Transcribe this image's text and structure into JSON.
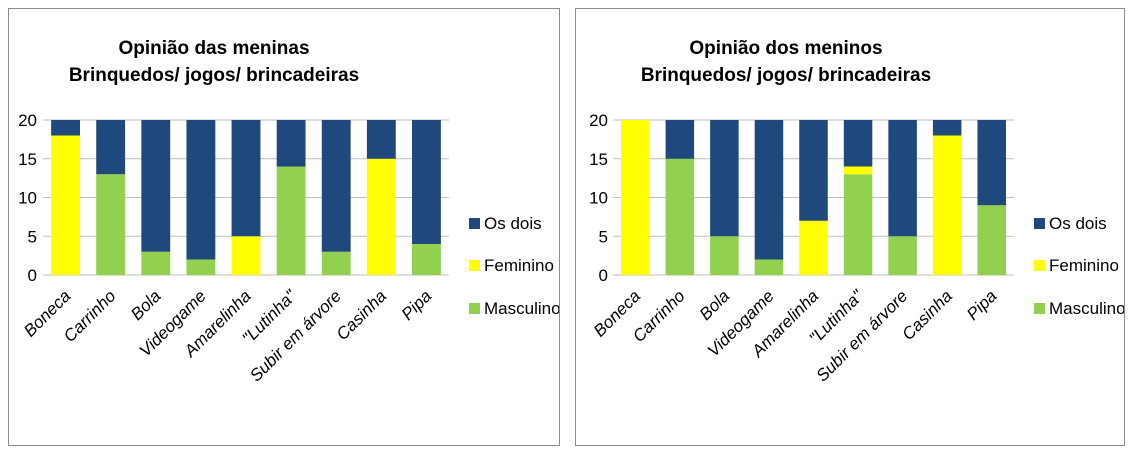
{
  "chart_data": [
    {
      "type": "bar",
      "stacked": true,
      "title": "Opinião das meninas",
      "subtitle": "Brinquedos/ jogos/ brincadeiras",
      "categories": [
        "Boneca",
        "Carrinho",
        "Bola",
        "Videogame",
        "Amarelinha",
        "\"Lutinha\"",
        "Subir em árvore",
        "Casinha",
        "Pipa"
      ],
      "yticks": [
        "0",
        "5",
        "10",
        "15",
        "20"
      ],
      "ylim": [
        0,
        20
      ],
      "legend_position": "right",
      "series": [
        {
          "name": "Masculino",
          "color": "#92d050",
          "values": [
            0,
            13,
            3,
            2,
            0,
            14,
            3,
            0,
            4
          ]
        },
        {
          "name": "Feminino",
          "color": "#ffff00",
          "values": [
            18,
            0,
            0,
            0,
            5,
            0,
            0,
            15,
            0
          ]
        },
        {
          "name": "Os dois",
          "color": "#1f497d",
          "values": [
            2,
            7,
            17,
            18,
            15,
            6,
            17,
            5,
            16
          ]
        }
      ],
      "legend_order": [
        "Os dois",
        "Feminino",
        "Masculino"
      ]
    },
    {
      "type": "bar",
      "stacked": true,
      "title": "Opinião dos meninos",
      "subtitle": "Brinquedos/ jogos/ brincadeiras",
      "categories": [
        "Boneca",
        "Carrinho",
        "Bola",
        "Videogame",
        "Amarelinha",
        "\"Lutinha\"",
        "Subir em árvore",
        "Casinha",
        "Pipa"
      ],
      "yticks": [
        "0",
        "5",
        "10",
        "15",
        "20"
      ],
      "ylim": [
        0,
        20
      ],
      "legend_position": "right",
      "series": [
        {
          "name": "Masculino",
          "color": "#92d050",
          "values": [
            0,
            15,
            5,
            2,
            0,
            13,
            5,
            0,
            9
          ]
        },
        {
          "name": "Feminino",
          "color": "#ffff00",
          "values": [
            20,
            0,
            0,
            0,
            7,
            1,
            0,
            18,
            0
          ]
        },
        {
          "name": "Os dois",
          "color": "#1f497d",
          "values": [
            0,
            5,
            15,
            18,
            13,
            6,
            15,
            2,
            11
          ]
        }
      ],
      "legend_order": [
        "Os dois",
        "Feminino",
        "Masculino"
      ]
    }
  ]
}
